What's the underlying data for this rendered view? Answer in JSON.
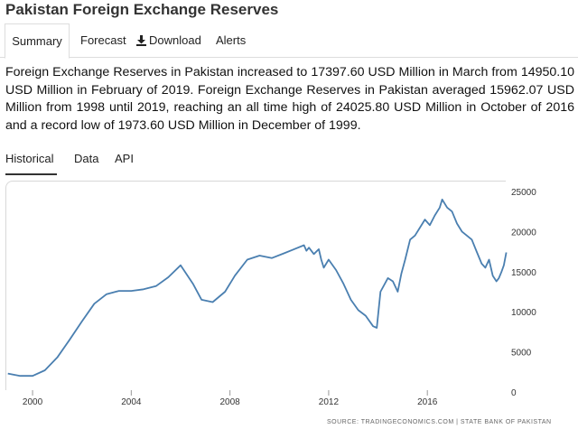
{
  "page": {
    "title": "Pakistan Foreign Exchange Reserves"
  },
  "tabs": [
    {
      "label": "Summary",
      "active": true
    },
    {
      "label": "Forecast",
      "active": false
    },
    {
      "label": "Download",
      "icon": "download-icon",
      "active": false
    },
    {
      "label": "Alerts",
      "active": false
    }
  ],
  "summary_text": "Foreign Exchange Reserves in Pakistan increased to 17397.60 USD Million in March from 14950.10 USD Million in February of 2019. Foreign Exchange Reserves in Pakistan averaged 15962.07 USD Million from 1998 until 2019, reaching an all time high of 24025.80 USD Million in October of 2016 and a record low of 1973.60 USD Million in December of 1999.",
  "subtabs": [
    {
      "label": "Historical",
      "active": true
    },
    {
      "label": "Data",
      "active": false
    },
    {
      "label": "API",
      "active": false
    }
  ],
  "colors": {
    "line": "#4a7fb0",
    "grid": "#d8d8d8",
    "active_underline": "#333333"
  },
  "source_text": "SOURCE: TRADINGECONOMICS.COM | STATE BANK OF PAKISTAN",
  "chart_data": {
    "type": "line",
    "title": "",
    "xlabel": "",
    "ylabel": "",
    "xlim": [
      1998.9,
      2019.25
    ],
    "ylim": [
      0,
      25000
    ],
    "x_ticks": [
      2000,
      2004,
      2008,
      2012,
      2016
    ],
    "y_ticks": [
      0,
      5000,
      10000,
      15000,
      20000,
      25000
    ],
    "y_axis_position": "right",
    "grid": false,
    "series": [
      {
        "x": [
          1999.0,
          1999.5,
          2000.0,
          2000.5,
          2001.0,
          2001.5,
          2002.0,
          2002.5,
          2003.0,
          2003.5,
          2004.0,
          2004.5,
          2005.0,
          2005.5,
          2006.0,
          2006.5,
          2006.85,
          2007.3,
          2007.8,
          2008.2,
          2008.7,
          2009.2,
          2009.7,
          2010.2,
          2010.6,
          2011.0,
          2011.1,
          2011.2,
          2011.4,
          2011.6,
          2011.7,
          2011.8,
          2012.0,
          2012.3,
          2012.6,
          2012.9,
          2013.2,
          2013.5,
          2013.8,
          2013.95,
          2014.1,
          2014.4,
          2014.6,
          2014.8,
          2014.95,
          2015.1,
          2015.3,
          2015.5,
          2015.7,
          2015.9,
          2016.1,
          2016.3,
          2016.5,
          2016.6,
          2016.8,
          2017.0,
          2017.2,
          2017.4,
          2017.6,
          2017.8,
          2018.0,
          2018.2,
          2018.35,
          2018.5,
          2018.65,
          2018.8,
          2018.9,
          2019.0,
          2019.1,
          2019.2
        ],
        "y": [
          2300,
          2000,
          2000,
          2700,
          4300,
          6500,
          8800,
          11000,
          12200,
          12600,
          12600,
          12800,
          13200,
          14300,
          15800,
          13500,
          11500,
          11200,
          12500,
          14500,
          16500,
          17000,
          16700,
          17300,
          17800,
          18300,
          17600,
          18000,
          17200,
          17800,
          16500,
          15500,
          16500,
          15200,
          13500,
          11500,
          10200,
          9500,
          8200,
          8000,
          12500,
          14200,
          13800,
          12500,
          14800,
          16500,
          19000,
          19500,
          20500,
          21500,
          20800,
          22000,
          23000,
          24000,
          23000,
          22500,
          21000,
          20000,
          19500,
          19000,
          17500,
          16000,
          15500,
          16500,
          14500,
          13800,
          14200,
          14950,
          15800,
          17400
        ]
      }
    ],
    "source": "SOURCE: TRADINGECONOMICS.COM | STATE BANK OF PAKISTAN"
  }
}
